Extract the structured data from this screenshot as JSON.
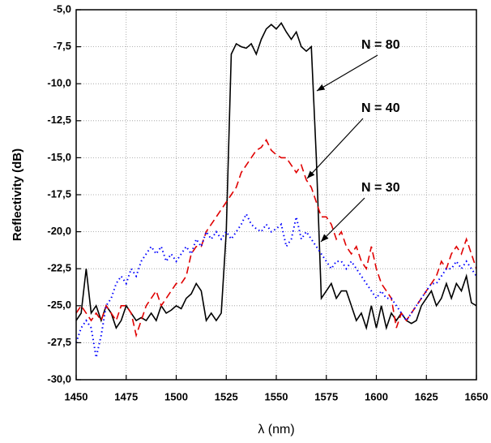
{
  "chart_data": {
    "type": "line",
    "xlabel": "λ  (nm)",
    "ylabel": "Reflectivity   (dB)",
    "x": [
      1450,
      1452.5,
      1455,
      1457.5,
      1460,
      1462.5,
      1465,
      1467.5,
      1470,
      1472.5,
      1475,
      1477.5,
      1480,
      1482.5,
      1485,
      1487.5,
      1490,
      1492.5,
      1495,
      1497.5,
      1500,
      1502.5,
      1505,
      1507.5,
      1510,
      1512.5,
      1515,
      1517.5,
      1520,
      1522.5,
      1525,
      1527.5,
      1530,
      1532.5,
      1535,
      1537.5,
      1540,
      1542.5,
      1545,
      1547.5,
      1550,
      1552.5,
      1555,
      1557.5,
      1560,
      1562.5,
      1565,
      1567.5,
      1570,
      1572.5,
      1575,
      1577.5,
      1580,
      1582.5,
      1585,
      1587.5,
      1590,
      1592.5,
      1595,
      1597.5,
      1600,
      1602.5,
      1605,
      1607.5,
      1610,
      1612.5,
      1615,
      1617.5,
      1620,
      1622.5,
      1625,
      1627.5,
      1630,
      1632.5,
      1635,
      1637.5,
      1640,
      1642.5,
      1645,
      1647.5,
      1650
    ],
    "series": [
      {
        "name": "N = 80",
        "color": "#000000",
        "linestyle": "solid",
        "values": [
          -26,
          -25.5,
          -22.5,
          -25.5,
          -25,
          -26,
          -25,
          -25.5,
          -26.5,
          -26,
          -25,
          -25.5,
          -26,
          -25.8,
          -26,
          -25.5,
          -26,
          -25,
          -25.5,
          -25.3,
          -25,
          -25.2,
          -24.5,
          -24.2,
          -23.5,
          -24,
          -26,
          -25.5,
          -26,
          -25.5,
          -20,
          -8,
          -7.3,
          -7.5,
          -7.6,
          -7.3,
          -8,
          -7,
          -6.3,
          -6,
          -6.3,
          -5.9,
          -6.5,
          -7,
          -6.5,
          -7.5,
          -7.8,
          -7.5,
          -15,
          -24.5,
          -24,
          -23.5,
          -24.5,
          -24,
          -24,
          -25,
          -26,
          -25.5,
          -26.5,
          -25,
          -26.5,
          -25,
          -26.5,
          -25.5,
          -26,
          -25.5,
          -26,
          -26.2,
          -26,
          -25,
          -24.5,
          -24,
          -25,
          -24.5,
          -23.5,
          -24.5,
          -23.5,
          -24,
          -23,
          -24.8,
          -25
        ]
      },
      {
        "name": "N = 40",
        "color": "#e00000",
        "linestyle": "dashed",
        "values": [
          -25.5,
          -25,
          -25.5,
          -26,
          -25.5,
          -26,
          -25,
          -25.5,
          -26,
          -25,
          -25,
          -25.5,
          -27,
          -26,
          -25,
          -24.5,
          -24,
          -25,
          -24.5,
          -24,
          -23.5,
          -23.5,
          -23,
          -21.5,
          -21,
          -21,
          -20,
          -19.5,
          -19,
          -18.5,
          -18,
          -17.5,
          -17,
          -16,
          -15.5,
          -15,
          -14.5,
          -14.3,
          -13.8,
          -14.5,
          -14.8,
          -15,
          -15,
          -15.5,
          -16,
          -15.5,
          -16.5,
          -17,
          -18,
          -19,
          -19,
          -19.5,
          -20.5,
          -20,
          -21,
          -21.5,
          -21,
          -22,
          -22.5,
          -21,
          -22.5,
          -23.5,
          -24,
          -24.5,
          -26.5,
          -25.5,
          -26,
          -25.5,
          -25,
          -24.5,
          -24,
          -23.5,
          -23,
          -22,
          -22.5,
          -21.5,
          -21,
          -21.5,
          -20.5,
          -21.5,
          -22.5
        ]
      },
      {
        "name": "N = 30",
        "color": "#0000ff",
        "linestyle": "dotted",
        "values": [
          -27.5,
          -26.5,
          -26,
          -26.5,
          -28.5,
          -27,
          -25,
          -24.5,
          -23.5,
          -23,
          -23.5,
          -22.5,
          -23,
          -22,
          -21.5,
          -21,
          -21.5,
          -21,
          -22,
          -21.5,
          -22,
          -21.5,
          -21,
          -21.5,
          -20.5,
          -21,
          -20,
          -20.5,
          -20,
          -20.5,
          -20,
          -20.5,
          -20,
          -19.5,
          -18.8,
          -19.5,
          -19.8,
          -20,
          -19.5,
          -20,
          -19.8,
          -19.5,
          -21,
          -20.5,
          -19,
          -20.5,
          -20,
          -20.5,
          -21,
          -21.5,
          -22,
          -22.5,
          -22,
          -22,
          -22.5,
          -22,
          -22.5,
          -23,
          -23.5,
          -24,
          -24.5,
          -24,
          -24.5,
          -24.5,
          -25,
          -25.5,
          -26,
          -25.5,
          -25,
          -24.5,
          -24,
          -23.5,
          -23.5,
          -23,
          -22.5,
          -22.5,
          -22,
          -22.5,
          -22,
          -22.5,
          -23
        ]
      }
    ],
    "xlim": [
      1450,
      1650
    ],
    "xticks": [
      1450,
      1475,
      1500,
      1525,
      1550,
      1575,
      1600,
      1625,
      1650
    ],
    "ylim": [
      -30,
      -5
    ],
    "yticks": [
      {
        "value": -30,
        "label": "-30,0"
      },
      {
        "value": -27.5,
        "label": "-27,5"
      },
      {
        "value": -25,
        "label": "-25,0"
      },
      {
        "value": -22.5,
        "label": "-22,5"
      },
      {
        "value": -20,
        "label": "-20,0"
      },
      {
        "value": -17.5,
        "label": "-17,5"
      },
      {
        "value": -15,
        "label": "-15,0"
      },
      {
        "value": -12.5,
        "label": "-12,5"
      },
      {
        "value": -10,
        "label": "-10,0"
      },
      {
        "value": -7.5,
        "label": "-7,5"
      },
      {
        "value": -5,
        "label": "-5,0"
      }
    ],
    "grid": true
  }
}
